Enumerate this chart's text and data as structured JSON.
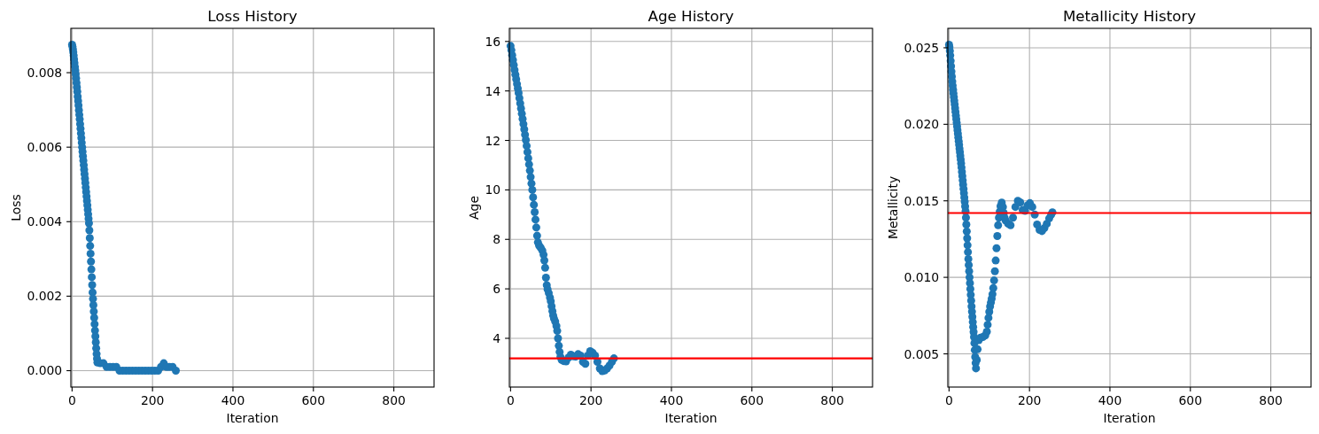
{
  "chart_data": [
    {
      "type": "scatter",
      "title": "Loss History",
      "xlabel": "Iteration",
      "ylabel": "Loss",
      "marker": "circle",
      "grid": true,
      "xlim": [
        -3,
        900
      ],
      "xticks": [
        0,
        200,
        400,
        600,
        800
      ],
      "ylim": [
        -0.00044,
        0.00919
      ],
      "yticks": [
        {
          "value": 0,
          "label": "0.000"
        },
        0.002,
        0.004,
        0.006,
        0.008
      ],
      "series": [
        {
          "color": "#1f77b4",
          "x": [
            0,
            1,
            2,
            3,
            4,
            5,
            6,
            7,
            8,
            9,
            10,
            11,
            12,
            13,
            14,
            15,
            16,
            17,
            18,
            19,
            20,
            21,
            22,
            23,
            24,
            25,
            26,
            27,
            28,
            29,
            30,
            31,
            32,
            33,
            34,
            35,
            36,
            37,
            38,
            39,
            40,
            41,
            42,
            43,
            44,
            45,
            46,
            47,
            48,
            49,
            50,
            51,
            52,
            53,
            54,
            55,
            56,
            57,
            58,
            59,
            60,
            61,
            62,
            63,
            70,
            78,
            86,
            94,
            102,
            110,
            118,
            126,
            134,
            142,
            150,
            158,
            166,
            174,
            182,
            190,
            198,
            206,
            214,
            221,
            228,
            235,
            242,
            250,
            258
          ],
          "values": [
            0.00875,
            0.0087,
            0.00863,
            0.00855,
            0.00846,
            0.00836,
            0.00826,
            0.00816,
            0.00806,
            0.00796,
            0.00785,
            0.00773,
            0.00761,
            0.00749,
            0.00736,
            0.00724,
            0.00712,
            0.00699,
            0.00687,
            0.00675,
            0.00662,
            0.0065,
            0.00637,
            0.00625,
            0.00612,
            0.006,
            0.00588,
            0.00576,
            0.00564,
            0.00552,
            0.0054,
            0.00528,
            0.00516,
            0.00504,
            0.00492,
            0.0048,
            0.00468,
            0.00456,
            0.00444,
            0.00432,
            0.0042,
            0.00408,
            0.00396,
            0.00377,
            0.00356,
            0.00335,
            0.00314,
            0.00293,
            0.00272,
            0.00251,
            0.0023,
            0.0021,
            0.00193,
            0.00176,
            0.00159,
            0.00142,
            0.00125,
            0.00108,
            0.00092,
            0.00076,
            0.0006,
            0.00045,
            0.00032,
            0.00022,
            0.0002,
            0.0002,
            0.0001,
            0.0001,
            0.0001,
            0.0001,
            0,
            0,
            0,
            0,
            0,
            0,
            0,
            0,
            0,
            0,
            0,
            0,
            0,
            0.0001,
            0.0002,
            0.0001,
            0.0001,
            0.0001,
            0
          ]
        }
      ]
    },
    {
      "type": "scatter",
      "title": "Age History",
      "xlabel": "Iteration",
      "ylabel": "Age",
      "marker": "circle",
      "grid": true,
      "xlim": [
        -3,
        900
      ],
      "xticks": [
        0,
        200,
        400,
        600,
        800
      ],
      "ylim": [
        2.03,
        16.53
      ],
      "yticks": [
        4,
        6,
        8,
        10,
        12,
        14,
        16
      ],
      "ref_lines": [
        {
          "axis": "y",
          "value": 3.19,
          "color": "#ff0000"
        }
      ],
      "series": [
        {
          "color": "#1f77b4",
          "x": [
            0,
            2,
            4,
            6,
            8,
            10,
            12,
            14,
            16,
            18,
            20,
            22,
            24,
            26,
            28,
            30,
            32,
            34,
            36,
            38,
            40,
            42,
            44,
            46,
            48,
            50,
            52,
            54,
            56,
            58,
            60,
            62,
            64,
            66,
            68,
            71,
            75,
            79,
            82,
            84,
            86,
            88,
            90,
            92,
            95,
            98,
            100,
            102,
            104,
            106,
            108,
            111,
            114,
            116,
            118,
            120,
            122,
            124,
            127,
            132,
            138,
            144,
            150,
            156,
            162,
            168,
            174,
            180,
            186,
            192,
            198,
            204,
            210,
            216,
            222,
            228,
            234,
            240,
            246,
            252,
            257
          ],
          "values": [
            15.82,
            15.65,
            15.45,
            15.25,
            15.05,
            14.85,
            14.66,
            14.47,
            14.28,
            14.1,
            13.92,
            13.71,
            13.5,
            13.29,
            13.08,
            12.87,
            12.66,
            12.45,
            12.23,
            12.02,
            11.78,
            11.53,
            11.28,
            11.03,
            10.78,
            10.52,
            10.26,
            10,
            9.7,
            9.4,
            9.1,
            8.8,
            8.48,
            8.15,
            7.88,
            7.75,
            7.66,
            7.55,
            7.38,
            7.15,
            6.85,
            6.45,
            6.15,
            5.98,
            5.83,
            5.65,
            5.5,
            5.3,
            5.1,
            4.92,
            4.8,
            4.68,
            4.5,
            4.3,
            4.0,
            3.7,
            3.45,
            3.25,
            3.13,
            3.08,
            3.07,
            3.22,
            3.34,
            3.27,
            3.26,
            3.36,
            3.3,
            3.05,
            2.97,
            3.3,
            3.48,
            3.42,
            3.3,
            3.05,
            2.78,
            2.67,
            2.7,
            2.78,
            2.9,
            3.05,
            3.19
          ]
        }
      ]
    },
    {
      "type": "scatter",
      "title": "Metallicity History",
      "xlabel": "Iteration",
      "ylabel": "Metallicity",
      "marker": "circle",
      "grid": true,
      "xlim": [
        -3,
        900
      ],
      "xticks": [
        0,
        200,
        400,
        600,
        800
      ],
      "ylim": [
        0.00283,
        0.02627
      ],
      "yticks": [
        0.005,
        {
          "value": 0.01,
          "label": "0.010"
        },
        0.015,
        {
          "value": 0.02,
          "label": "0.020"
        },
        0.025
      ],
      "ref_lines": [
        {
          "axis": "y",
          "value": 0.0142,
          "color": "#ff0000"
        }
      ],
      "series": [
        {
          "color": "#1f77b4",
          "x": [
            0,
            1,
            2,
            3,
            4,
            5,
            6,
            7,
            8,
            9,
            10,
            11,
            12,
            13,
            14,
            15,
            16,
            17,
            18,
            19,
            20,
            21,
            22,
            23,
            24,
            25,
            26,
            27,
            28,
            29,
            30,
            31,
            32,
            33,
            34,
            35,
            36,
            37,
            38,
            39,
            40,
            41,
            42,
            43,
            44,
            45,
            46,
            47,
            48,
            49,
            50,
            51,
            52,
            53,
            54,
            55,
            56,
            57,
            58,
            59,
            60,
            61,
            62,
            63,
            64,
            65,
            66,
            67,
            69,
            71,
            74,
            78,
            84,
            90,
            94,
            96,
            98,
            100,
            102,
            104,
            106,
            108,
            110,
            112,
            114,
            116,
            118,
            120,
            122,
            124,
            126,
            128,
            131,
            134,
            136,
            138,
            141,
            147,
            153,
            159,
            165,
            171,
            177,
            183,
            189,
            195,
            201,
            207,
            213,
            219,
            225,
            231,
            237,
            243,
            249,
            254,
            257
          ],
          "values": [
            0.0252,
            0.02505,
            0.0248,
            0.0245,
            0.02415,
            0.0238,
            0.02345,
            0.02312,
            0.0228,
            0.02252,
            0.02226,
            0.02202,
            0.02178,
            0.02154,
            0.0213,
            0.02106,
            0.02082,
            0.02058,
            0.02034,
            0.0201,
            0.01986,
            0.01962,
            0.01938,
            0.01914,
            0.0189,
            0.01866,
            0.01842,
            0.01818,
            0.01794,
            0.0177,
            0.01745,
            0.01718,
            0.0169,
            0.01662,
            0.01634,
            0.01606,
            0.01578,
            0.0155,
            0.01522,
            0.01494,
            0.01464,
            0.01432,
            0.0139,
            0.01345,
            0.013,
            0.01255,
            0.0121,
            0.01165,
            0.0112,
            0.0108,
            0.0104,
            0.01,
            0.00962,
            0.00924,
            0.00886,
            0.00848,
            0.0081,
            0.00776,
            0.00742,
            0.00708,
            0.00675,
            0.00643,
            0.0061,
            0.0057,
            0.00525,
            0.0048,
            0.0044,
            0.00405,
            0.0046,
            0.0053,
            0.0059,
            0.00605,
            0.0061,
            0.0062,
            0.00645,
            0.0069,
            0.00735,
            0.00775,
            0.0081,
            0.00835,
            0.0086,
            0.0089,
            0.0093,
            0.0098,
            0.0104,
            0.0111,
            0.0119,
            0.0127,
            0.0134,
            0.0139,
            0.0143,
            0.01465,
            0.01488,
            0.0146,
            0.0142,
            0.0139,
            0.0137,
            0.0135,
            0.0134,
            0.0139,
            0.0146,
            0.015,
            0.0149,
            0.0144,
            0.01435,
            0.0147,
            0.01485,
            0.0146,
            0.0141,
            0.01345,
            0.0131,
            0.01302,
            0.01322,
            0.0135,
            0.01385,
            0.0141,
            0.01425
          ]
        }
      ]
    }
  ]
}
